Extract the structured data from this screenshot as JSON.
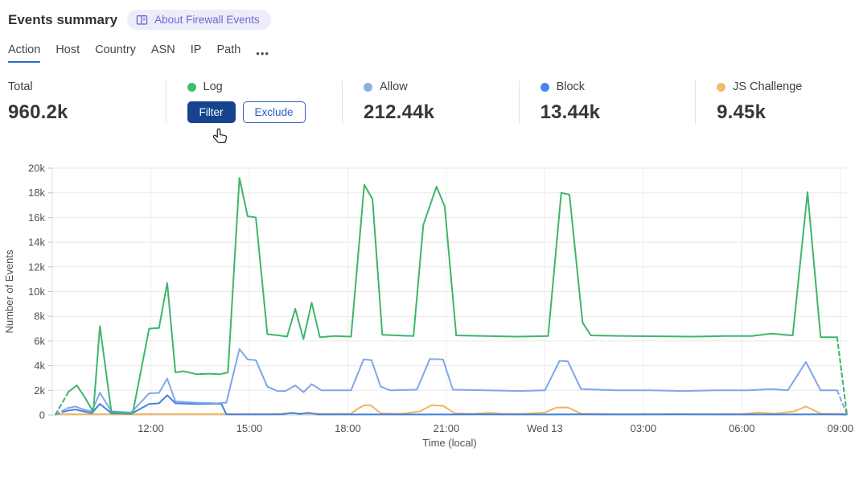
{
  "header": {
    "title": "Events summary",
    "about_label": "About Firewall Events"
  },
  "tabs": {
    "items": [
      {
        "label": "Action",
        "active": true
      },
      {
        "label": "Host",
        "active": false
      },
      {
        "label": "Country",
        "active": false
      },
      {
        "label": "ASN",
        "active": false
      },
      {
        "label": "IP",
        "active": false
      },
      {
        "label": "Path",
        "active": false
      }
    ],
    "more_label": "•••"
  },
  "stats": {
    "total": {
      "label": "Total",
      "value": "960.2k"
    },
    "series": [
      {
        "label": "Log",
        "color": "#3dbd70",
        "filter_label": "Filter",
        "exclude_label": "Exclude"
      },
      {
        "label": "Allow",
        "color": "#8cb0ec",
        "value": "212.44k"
      },
      {
        "label": "Block",
        "color": "#4687ea",
        "value": "13.44k"
      },
      {
        "label": "JS Challenge",
        "color": "#f2bc6a",
        "value": "9.45k"
      }
    ]
  },
  "chart_data": {
    "type": "line",
    "title": "",
    "xlabel": "Time (local)",
    "ylabel": "Number of Events",
    "units": "events, values in thousands (k)",
    "x_unit": "hours from 09:00 Tue to 09:15 Wed (local)",
    "x_domain": [
      0,
      24.2
    ],
    "ylim": [
      0,
      20
    ],
    "grid": true,
    "legend_position": "stats-row-above-chart",
    "yticks": [
      {
        "v": 0,
        "label": "0"
      },
      {
        "v": 2,
        "label": "2k"
      },
      {
        "v": 4,
        "label": "4k"
      },
      {
        "v": 6,
        "label": "6k"
      },
      {
        "v": 8,
        "label": "8k"
      },
      {
        "v": 10,
        "label": "10k"
      },
      {
        "v": 12,
        "label": "12k"
      },
      {
        "v": 14,
        "label": "14k"
      },
      {
        "v": 16,
        "label": "16k"
      },
      {
        "v": 18,
        "label": "18k"
      },
      {
        "v": 20,
        "label": "20k"
      }
    ],
    "xticks": [
      {
        "t": 3,
        "label": "12:00"
      },
      {
        "t": 6,
        "label": "15:00"
      },
      {
        "t": 9,
        "label": "18:00"
      },
      {
        "t": 12,
        "label": "21:00"
      },
      {
        "t": 15,
        "label": "Wed 13"
      },
      {
        "t": 18,
        "label": "03:00"
      },
      {
        "t": 21,
        "label": "06:00"
      },
      {
        "t": 24,
        "label": "09:00"
      }
    ],
    "series": [
      {
        "name": "JS Challenge",
        "color": "#f2b45f",
        "dash_start": false,
        "dash_end": false,
        "points": [
          [
            0.1,
            0.06
          ],
          [
            1,
            0.07
          ],
          [
            2,
            0.07
          ],
          [
            3,
            0.08
          ],
          [
            4,
            0.08
          ],
          [
            5,
            0.08
          ],
          [
            6,
            0.08
          ],
          [
            6.8,
            0.1
          ],
          [
            7.3,
            0.15
          ],
          [
            7.8,
            0.12
          ],
          [
            8.4,
            0.1
          ],
          [
            9.1,
            0.12
          ],
          [
            9.3,
            0.5
          ],
          [
            9.5,
            0.8
          ],
          [
            9.7,
            0.78
          ],
          [
            10,
            0.15
          ],
          [
            10.6,
            0.1
          ],
          [
            11.2,
            0.3
          ],
          [
            11.55,
            0.8
          ],
          [
            11.9,
            0.75
          ],
          [
            12.25,
            0.15
          ],
          [
            12.8,
            0.1
          ],
          [
            13.3,
            0.18
          ],
          [
            13.7,
            0.12
          ],
          [
            14.3,
            0.1
          ],
          [
            15,
            0.2
          ],
          [
            15.35,
            0.6
          ],
          [
            15.7,
            0.62
          ],
          [
            16.1,
            0.12
          ],
          [
            17,
            0.08
          ],
          [
            18,
            0.08
          ],
          [
            19,
            0.09
          ],
          [
            20,
            0.08
          ],
          [
            21,
            0.1
          ],
          [
            21.5,
            0.2
          ],
          [
            22,
            0.12
          ],
          [
            22.6,
            0.3
          ],
          [
            22.95,
            0.7
          ],
          [
            23.4,
            0.12
          ],
          [
            24.2,
            0.1
          ]
        ]
      },
      {
        "name": "Block",
        "color": "#4183e4",
        "dash_start": true,
        "dash_end": false,
        "points": [
          [
            0.1,
            0.05
          ],
          [
            0.45,
            0.35
          ],
          [
            0.7,
            0.45
          ],
          [
            0.95,
            0.3
          ],
          [
            1.2,
            0.15
          ],
          [
            1.45,
            0.9
          ],
          [
            1.8,
            0.15
          ],
          [
            2.4,
            0.1
          ],
          [
            2.95,
            0.9
          ],
          [
            3.25,
            0.95
          ],
          [
            3.5,
            1.6
          ],
          [
            3.75,
            0.95
          ],
          [
            4.4,
            0.9
          ],
          [
            5,
            0.92
          ],
          [
            5.15,
            0.9
          ],
          [
            5.3,
            0.06
          ],
          [
            6,
            0.05
          ],
          [
            7,
            0.06
          ],
          [
            7.3,
            0.18
          ],
          [
            7.55,
            0.08
          ],
          [
            7.8,
            0.18
          ],
          [
            8.1,
            0.05
          ],
          [
            9,
            0.05
          ],
          [
            10,
            0.05
          ],
          [
            11,
            0.05
          ],
          [
            12,
            0.05
          ],
          [
            13,
            0.06
          ],
          [
            14,
            0.05
          ],
          [
            15,
            0.05
          ],
          [
            16,
            0.06
          ],
          [
            17,
            0.05
          ],
          [
            18,
            0.05
          ],
          [
            19,
            0.06
          ],
          [
            20,
            0.05
          ],
          [
            21,
            0.05
          ],
          [
            22,
            0.05
          ],
          [
            23,
            0.06
          ],
          [
            23.9,
            0.05
          ],
          [
            24.2,
            0.04
          ]
        ]
      },
      {
        "name": "Allow",
        "color": "#7fa7e8",
        "dash_start": true,
        "dash_end": true,
        "points": [
          [
            0.1,
            0.05
          ],
          [
            0.45,
            0.55
          ],
          [
            0.7,
            0.7
          ],
          [
            0.95,
            0.45
          ],
          [
            1.2,
            0.3
          ],
          [
            1.45,
            1.8
          ],
          [
            1.8,
            0.3
          ],
          [
            2.4,
            0.2
          ],
          [
            2.95,
            1.75
          ],
          [
            3.25,
            1.8
          ],
          [
            3.5,
            2.95
          ],
          [
            3.75,
            1.1
          ],
          [
            4.4,
            1
          ],
          [
            5,
            0.95
          ],
          [
            5.3,
            1
          ],
          [
            5.7,
            5.35
          ],
          [
            5.95,
            4.5
          ],
          [
            6.2,
            4.45
          ],
          [
            6.55,
            2.3
          ],
          [
            6.85,
            1.95
          ],
          [
            7.1,
            1.95
          ],
          [
            7.4,
            2.4
          ],
          [
            7.65,
            1.85
          ],
          [
            7.9,
            2.5
          ],
          [
            8.2,
            2
          ],
          [
            9.1,
            2
          ],
          [
            9.48,
            4.5
          ],
          [
            9.72,
            4.45
          ],
          [
            10,
            2.3
          ],
          [
            10.3,
            2
          ],
          [
            11.1,
            2.05
          ],
          [
            11.5,
            4.55
          ],
          [
            11.9,
            4.5
          ],
          [
            12.2,
            2.05
          ],
          [
            13.2,
            2
          ],
          [
            14.2,
            1.95
          ],
          [
            15,
            2
          ],
          [
            15.45,
            4.4
          ],
          [
            15.7,
            4.35
          ],
          [
            16.1,
            2.1
          ],
          [
            17.2,
            2
          ],
          [
            18.2,
            2
          ],
          [
            19.2,
            1.95
          ],
          [
            20.2,
            2
          ],
          [
            21.2,
            2
          ],
          [
            21.9,
            2.1
          ],
          [
            22.4,
            2
          ],
          [
            22.95,
            4.3
          ],
          [
            23.4,
            2
          ],
          [
            23.9,
            2
          ],
          [
            24.2,
            0.05
          ]
        ]
      },
      {
        "name": "Log",
        "color": "#3fb56c",
        "dash_start": true,
        "dash_end": true,
        "points": [
          [
            0.1,
            0.05
          ],
          [
            0.5,
            1.9
          ],
          [
            0.75,
            2.4
          ],
          [
            1,
            1.4
          ],
          [
            1.25,
            0.25
          ],
          [
            1.45,
            7.2
          ],
          [
            1.8,
            0.25
          ],
          [
            2.1,
            0.15
          ],
          [
            2.45,
            0.15
          ],
          [
            2.95,
            7
          ],
          [
            3.25,
            7.05
          ],
          [
            3.5,
            10.7
          ],
          [
            3.75,
            3.45
          ],
          [
            4,
            3.55
          ],
          [
            4.4,
            3.3
          ],
          [
            4.8,
            3.35
          ],
          [
            5.1,
            3.3
          ],
          [
            5.35,
            3.45
          ],
          [
            5.7,
            19.2
          ],
          [
            5.95,
            16.1
          ],
          [
            6.2,
            16
          ],
          [
            6.55,
            6.55
          ],
          [
            6.9,
            6.45
          ],
          [
            7.15,
            6.35
          ],
          [
            7.4,
            8.6
          ],
          [
            7.65,
            6.15
          ],
          [
            7.9,
            9.1
          ],
          [
            8.15,
            6.3
          ],
          [
            8.6,
            6.4
          ],
          [
            9.1,
            6.35
          ],
          [
            9.5,
            18.65
          ],
          [
            9.75,
            17.5
          ],
          [
            10.05,
            6.5
          ],
          [
            10.5,
            6.45
          ],
          [
            11,
            6.4
          ],
          [
            11.3,
            15.4
          ],
          [
            11.7,
            18.5
          ],
          [
            11.95,
            16.9
          ],
          [
            12.3,
            6.45
          ],
          [
            13.2,
            6.4
          ],
          [
            14.2,
            6.35
          ],
          [
            15.1,
            6.4
          ],
          [
            15.5,
            18
          ],
          [
            15.75,
            17.85
          ],
          [
            16.15,
            7.5
          ],
          [
            16.4,
            6.45
          ],
          [
            17.5,
            6.4
          ],
          [
            18.5,
            6.38
          ],
          [
            19.5,
            6.35
          ],
          [
            20.5,
            6.4
          ],
          [
            21.3,
            6.4
          ],
          [
            21.9,
            6.6
          ],
          [
            22.3,
            6.5
          ],
          [
            22.55,
            6.45
          ],
          [
            23,
            18.05
          ],
          [
            23.4,
            6.3
          ],
          [
            23.9,
            6.3
          ],
          [
            24.2,
            0.05
          ]
        ]
      }
    ]
  }
}
